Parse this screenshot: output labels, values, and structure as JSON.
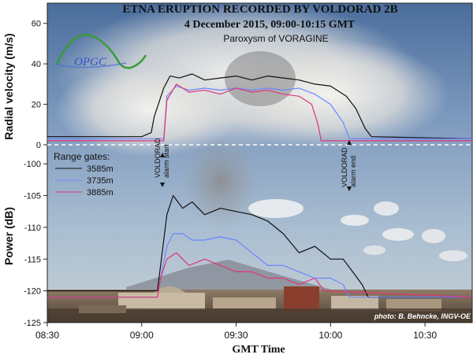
{
  "title": "ETNA ERUPTION RECORDED BY VOLDORAD 2B",
  "subtitle": "4 December 2015, 09:00-10:15 GMT",
  "subtitle2": "Paroxysm of VORAGINE",
  "logo_text": "OPGC",
  "photo_credit": "photo: B. Behncke, INGV-OE",
  "colors": {
    "sky_top": "#4a6d9c",
    "sky_mid": "#a9bdd1",
    "cloud": "#e9e8e4",
    "ground": "#6a5a48"
  },
  "annotations": {
    "alarm_start": {
      "line1": "VOLDORAD",
      "line2": "alarm start"
    },
    "alarm_end": {
      "line1": "VOLDORAD",
      "line2": "alarm end"
    }
  },
  "chart_data": {
    "type": "line",
    "xlabel": "GMT Time",
    "x_ticks": [
      "08:30",
      "09:00",
      "09:30",
      "10:00",
      "10:30"
    ],
    "x_range_minutes": [
      510,
      645
    ],
    "legend": {
      "title": "Range gates:",
      "placement": "left, between panels"
    },
    "panels": [
      {
        "ylabel": "Radial velocity (m/s)",
        "ylim": [
          0,
          70
        ],
        "yticks": [
          0,
          20,
          40,
          60
        ],
        "series": [
          {
            "name": "3585m",
            "color": "#111111",
            "points": [
              [
                510,
                4
              ],
              [
                540,
                4
              ],
              [
                543,
                6
              ],
              [
                544,
                14
              ],
              [
                547,
                28
              ],
              [
                549,
                34
              ],
              [
                552,
                33
              ],
              [
                556,
                35
              ],
              [
                560,
                32
              ],
              [
                565,
                33
              ],
              [
                570,
                34
              ],
              [
                575,
                32
              ],
              [
                580,
                34
              ],
              [
                585,
                33
              ],
              [
                590,
                32
              ],
              [
                595,
                30
              ],
              [
                600,
                29
              ],
              [
                605,
                24
              ],
              [
                608,
                18
              ],
              [
                611,
                8
              ],
              [
                613,
                4
              ],
              [
                645,
                3
              ]
            ]
          },
          {
            "name": "3735m",
            "color": "#6a86ff",
            "points": [
              [
                510,
                3
              ],
              [
                547,
                3
              ],
              [
                548,
                24
              ],
              [
                551,
                29
              ],
              [
                555,
                27
              ],
              [
                560,
                28
              ],
              [
                565,
                27
              ],
              [
                570,
                28
              ],
              [
                575,
                27
              ],
              [
                580,
                28
              ],
              [
                585,
                27
              ],
              [
                590,
                28
              ],
              [
                595,
                25
              ],
              [
                600,
                20
              ],
              [
                604,
                11
              ],
              [
                606,
                3
              ],
              [
                645,
                3
              ]
            ]
          },
          {
            "name": "3885m",
            "color": "#e0367a",
            "points": [
              [
                510,
                2
              ],
              [
                547,
                2
              ],
              [
                548,
                22
              ],
              [
                551,
                30
              ],
              [
                555,
                26
              ],
              [
                560,
                27
              ],
              [
                565,
                25
              ],
              [
                570,
                28
              ],
              [
                575,
                26
              ],
              [
                580,
                27
              ],
              [
                585,
                25
              ],
              [
                590,
                24
              ],
              [
                594,
                20
              ],
              [
                596,
                10
              ],
              [
                597,
                2
              ],
              [
                645,
                2
              ]
            ]
          }
        ]
      },
      {
        "ylabel": "Power (dB)",
        "ylim": [
          -125,
          -97
        ],
        "yticks": [
          -125,
          -120,
          -115,
          -110,
          -105,
          -100
        ],
        "series": [
          {
            "name": "3585m",
            "color": "#111111",
            "points": [
              [
                510,
                -120
              ],
              [
                545,
                -120
              ],
              [
                546,
                -116
              ],
              [
                548,
                -108
              ],
              [
                550,
                -105
              ],
              [
                553,
                -107
              ],
              [
                556,
                -106
              ],
              [
                560,
                -108
              ],
              [
                565,
                -107
              ],
              [
                570,
                -107.5
              ],
              [
                575,
                -108
              ],
              [
                580,
                -109
              ],
              [
                585,
                -111
              ],
              [
                590,
                -114
              ],
              [
                595,
                -113
              ],
              [
                600,
                -115
              ],
              [
                604,
                -115
              ],
              [
                607,
                -117
              ],
              [
                610,
                -119
              ],
              [
                612,
                -121
              ],
              [
                645,
                -121
              ]
            ]
          },
          {
            "name": "3735m",
            "color": "#6a86ff",
            "points": [
              [
                510,
                -121
              ],
              [
                545,
                -121
              ],
              [
                546,
                -118
              ],
              [
                548,
                -113
              ],
              [
                550,
                -111
              ],
              [
                553,
                -111
              ],
              [
                556,
                -112
              ],
              [
                560,
                -112
              ],
              [
                565,
                -111.5
              ],
              [
                570,
                -112
              ],
              [
                575,
                -114
              ],
              [
                580,
                -116
              ],
              [
                585,
                -116
              ],
              [
                590,
                -117
              ],
              [
                595,
                -118
              ],
              [
                600,
                -118
              ],
              [
                604,
                -119
              ],
              [
                606,
                -121
              ],
              [
                645,
                -121
              ]
            ]
          },
          {
            "name": "3885m",
            "color": "#e0367a",
            "points": [
              [
                510,
                -121
              ],
              [
                545,
                -121
              ],
              [
                546,
                -118
              ],
              [
                548,
                -115
              ],
              [
                551,
                -114
              ],
              [
                555,
                -116
              ],
              [
                560,
                -115
              ],
              [
                565,
                -116
              ],
              [
                570,
                -117
              ],
              [
                575,
                -117
              ],
              [
                580,
                -118
              ],
              [
                585,
                -118
              ],
              [
                590,
                -119
              ],
              [
                595,
                -118
              ],
              [
                598,
                -120
              ],
              [
                645,
                -121
              ]
            ]
          }
        ]
      }
    ]
  }
}
